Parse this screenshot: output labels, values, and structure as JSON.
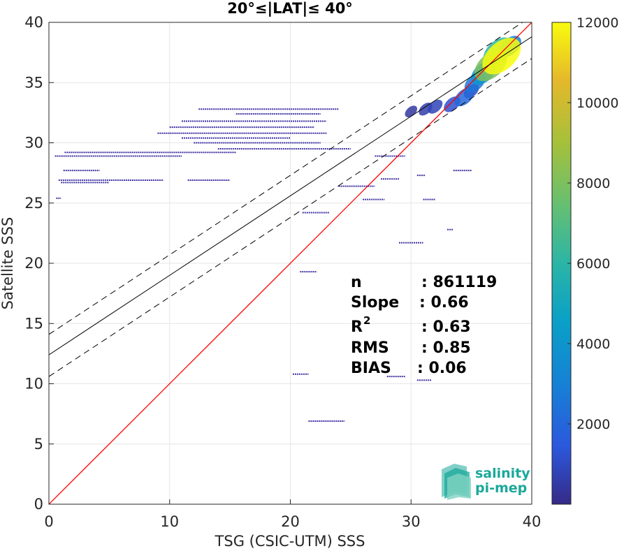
{
  "chart_data": {
    "type": "heatmap",
    "title": "20°≤|LAT|≤ 40°",
    "xlabel": "TSG (CSIC-UTM) SSS",
    "ylabel": "Satellite SSS",
    "xlim": [
      0,
      40
    ],
    "ylim": [
      0,
      40
    ],
    "x_ticks": [
      "0",
      "10",
      "20",
      "30",
      "40"
    ],
    "y_ticks": [
      "0",
      "5",
      "10",
      "15",
      "20",
      "25",
      "30",
      "35",
      "40"
    ],
    "grid": true,
    "colorbar": {
      "colormap": "parula",
      "range": [
        0,
        12000
      ],
      "ticks": [
        "2000",
        "4000",
        "6000",
        "8000",
        "10000",
        "12000"
      ]
    },
    "lines": [
      {
        "name": "1:1",
        "color": "#ff0000",
        "style": "solid",
        "x": [
          0,
          40
        ],
        "y": [
          0,
          40
        ]
      },
      {
        "name": "fit",
        "color": "#000000",
        "style": "solid",
        "x": [
          0,
          40
        ],
        "y": [
          12.4,
          38.8
        ]
      },
      {
        "name": "fit+",
        "color": "#000000",
        "style": "dashed",
        "x": [
          0,
          40
        ],
        "y": [
          14.1,
          40.5
        ]
      },
      {
        "name": "fit-",
        "color": "#000000",
        "style": "dashed",
        "x": [
          0,
          40
        ],
        "y": [
          10.6,
          37.0
        ]
      }
    ],
    "segments": [
      {
        "y": 28.9,
        "x0": 0.5,
        "x1": 11.0
      },
      {
        "y": 29.2,
        "x0": 1.3,
        "x1": 15.5
      },
      {
        "y": 27.7,
        "x0": 1.2,
        "x1": 4.2
      },
      {
        "y": 26.9,
        "x0": 0.8,
        "x1": 9.5
      },
      {
        "y": 26.9,
        "x0": 11.5,
        "x1": 15.0
      },
      {
        "y": 26.7,
        "x0": 1.0,
        "x1": 5.0
      },
      {
        "y": 25.4,
        "x0": 0.6,
        "x1": 1.0
      },
      {
        "y": 32.8,
        "x0": 12.4,
        "x1": 24.0
      },
      {
        "y": 32.4,
        "x0": 15.5,
        "x1": 22.5
      },
      {
        "y": 31.8,
        "x0": 11.0,
        "x1": 23.0
      },
      {
        "y": 31.3,
        "x0": 10.0,
        "x1": 22.0
      },
      {
        "y": 30.8,
        "x0": 9.0,
        "x1": 23.0
      },
      {
        "y": 30.4,
        "x0": 11.0,
        "x1": 20.0
      },
      {
        "y": 30.0,
        "x0": 12.0,
        "x1": 22.5
      },
      {
        "y": 29.5,
        "x0": 14.0,
        "x1": 25.0
      },
      {
        "y": 28.9,
        "x0": 27.0,
        "x1": 29.5
      },
      {
        "y": 27.0,
        "x0": 27.5,
        "x1": 29.0
      },
      {
        "y": 26.4,
        "x0": 24.0,
        "x1": 27.0
      },
      {
        "y": 25.3,
        "x0": 26.0,
        "x1": 27.8
      },
      {
        "y": 25.3,
        "x0": 31.0,
        "x1": 32.0
      },
      {
        "y": 27.7,
        "x0": 33.5,
        "x1": 35.0
      },
      {
        "y": 27.3,
        "x0": 30.5,
        "x1": 31.2
      },
      {
        "y": 24.2,
        "x0": 21.0,
        "x1": 23.2
      },
      {
        "y": 22.8,
        "x0": 33.0,
        "x1": 33.5
      },
      {
        "y": 21.7,
        "x0": 29.0,
        "x1": 31.0
      },
      {
        "y": 19.3,
        "x0": 20.8,
        "x1": 22.2
      },
      {
        "y": 10.8,
        "x0": 20.2,
        "x1": 21.5
      },
      {
        "y": 10.6,
        "x0": 28.0,
        "x1": 29.5
      },
      {
        "y": 10.3,
        "x0": 30.5,
        "x1": 31.7
      },
      {
        "y": 6.9,
        "x0": 21.5,
        "x1": 24.5
      }
    ],
    "cloud": [
      {
        "x": 37.5,
        "y": 37.2,
        "count": 12000
      },
      {
        "x": 36.6,
        "y": 36.4,
        "count": 8000
      },
      {
        "x": 37.2,
        "y": 37.6,
        "count": 6000
      },
      {
        "x": 36.0,
        "y": 35.8,
        "count": 4000
      },
      {
        "x": 38.2,
        "y": 38.0,
        "count": 3000
      },
      {
        "x": 35.3,
        "y": 35.0,
        "count": 2500
      },
      {
        "x": 34.4,
        "y": 33.8,
        "count": 2000
      },
      {
        "x": 33.4,
        "y": 33.2,
        "count": 1200
      },
      {
        "x": 32.0,
        "y": 33.0,
        "count": 800
      },
      {
        "x": 31.2,
        "y": 32.8,
        "count": 600
      },
      {
        "x": 35.0,
        "y": 34.3,
        "count": 900
      },
      {
        "x": 30.0,
        "y": 32.6,
        "count": 400
      }
    ]
  },
  "stats": {
    "labels": [
      "n",
      "Slope",
      "R",
      "RMS",
      "BIAS"
    ],
    "superscript": "2",
    "values": [
      ": 861119",
      ": 0.66",
      ": 0.63",
      ": 0.85",
      ": 0.06"
    ]
  },
  "logo": {
    "line1": "salinity",
    "line2": "pi-mep"
  }
}
